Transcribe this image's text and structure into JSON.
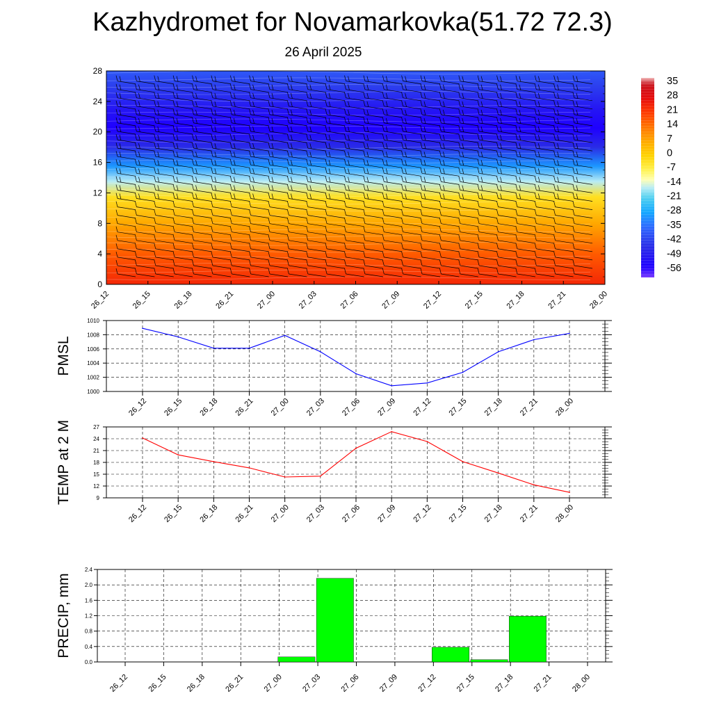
{
  "title": "Kazhydromet for Novamarkovka(51.72 72.3)",
  "subtitle": "26 April 2025",
  "chart_data": [
    {
      "type": "heatmap",
      "yticks": [
        0,
        4,
        8,
        12,
        16,
        20,
        24,
        28
      ],
      "ylim": [
        0,
        28
      ],
      "x_labels": [
        "26_12",
        "26_15",
        "26_18",
        "26_21",
        "27_00",
        "27_03",
        "27_06",
        "27_09",
        "27_12",
        "27_15",
        "27_18",
        "27_21",
        "28_00"
      ],
      "colorbar": {
        "labels": [
          35,
          28,
          21,
          14,
          7,
          0,
          -7,
          -14,
          -21,
          -28,
          -35,
          -42,
          -49,
          -56
        ],
        "range": [
          -60,
          38
        ]
      },
      "temperature_profile": [
        {
          "level": 0,
          "value": 24
        },
        {
          "level": 4,
          "value": 17
        },
        {
          "level": 8,
          "value": 7
        },
        {
          "level": 11.5,
          "value": -3
        },
        {
          "level": 13.5,
          "value": -16
        },
        {
          "level": 15.5,
          "value": -30
        },
        {
          "level": 18,
          "value": -45
        },
        {
          "level": 20.5,
          "value": -55
        },
        {
          "level": 23,
          "value": -50
        },
        {
          "level": 26,
          "value": -42
        },
        {
          "level": 28,
          "value": -38
        }
      ],
      "wind_barbs": true,
      "grid": false
    },
    {
      "type": "line",
      "ylabel": "PMSL",
      "yticks": [
        1000,
        1002,
        1004,
        1006,
        1008,
        1010
      ],
      "ylim": [
        1000,
        1010
      ],
      "categories": [
        "26_12",
        "26_15",
        "26_18",
        "26_21",
        "27_00",
        "27_03",
        "27_06",
        "27_09",
        "27_12",
        "27_15",
        "27_18",
        "27_21",
        "28_00"
      ],
      "values": [
        1008.9,
        1007.7,
        1006.1,
        1006.1,
        1007.9,
        1005.6,
        1002.5,
        1000.8,
        1001.2,
        1002.7,
        1005.6,
        1007.3,
        1008.2
      ],
      "color": "#0000ff",
      "grid": true
    },
    {
      "type": "line",
      "ylabel": "TEMP at 2 M",
      "yticks": [
        9,
        12,
        15,
        18,
        21,
        24,
        27
      ],
      "ylim": [
        9,
        27
      ],
      "categories": [
        "26_12",
        "26_15",
        "26_18",
        "26_21",
        "27_00",
        "27_03",
        "27_06",
        "27_09",
        "27_12",
        "27_15",
        "27_18",
        "27_21",
        "28_00"
      ],
      "values": [
        24.2,
        19.9,
        18.2,
        16.6,
        14.3,
        14.5,
        21.6,
        25.8,
        23.3,
        18.2,
        15.3,
        12.3,
        10.4
      ],
      "color": "#ff0000",
      "grid": true
    },
    {
      "type": "bar",
      "ylabel": "PRECIP, mm",
      "yticks": [
        "0.0",
        "0.4",
        "0.8",
        "1.2",
        "1.6",
        "2.0",
        "2.4"
      ],
      "ylim": [
        0,
        2.4
      ],
      "categories": [
        "26_12",
        "26_15",
        "26_18",
        "26_21",
        "27_00",
        "27_03",
        "27_06",
        "27_09",
        "27_12",
        "27_15",
        "27_18",
        "27_21",
        "28_00"
      ],
      "values": [
        0,
        0,
        0,
        0,
        0.13,
        2.17,
        0,
        0,
        0.38,
        0.06,
        1.19,
        0,
        0
      ],
      "color": "#00ff00",
      "grid": true
    }
  ]
}
